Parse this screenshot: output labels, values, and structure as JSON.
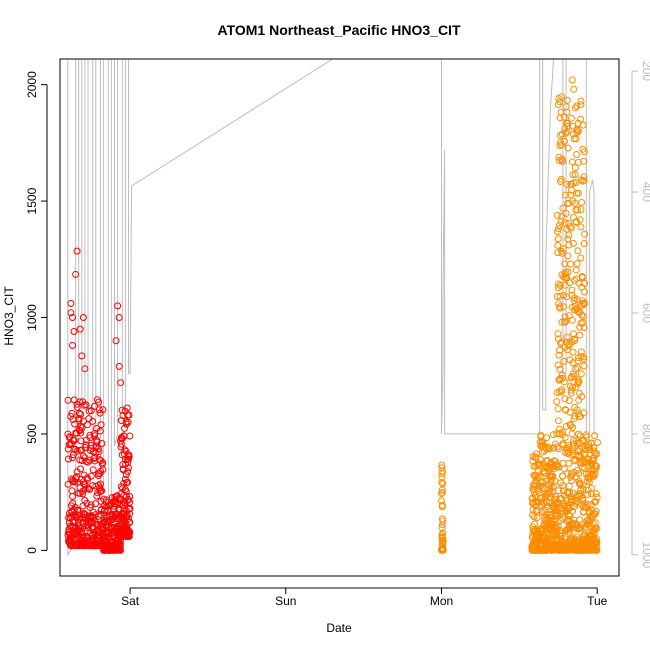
{
  "chart_data": {
    "type": "scatter",
    "title": "ATOM1 Northeast_Pacific HNO3_CIT",
    "xlabel": "Date",
    "ylabel": "HNO3_CIT",
    "x_ticks": [
      "Sat",
      "Sun",
      "Mon",
      "Tue"
    ],
    "y_ticks": [
      "0",
      "500",
      "1000",
      "1500",
      "2000"
    ],
    "y_ticks_right": [
      "200",
      "400",
      "600",
      "800",
      "1000"
    ],
    "xlim_days": [
      -0.45,
      3.14
    ],
    "ylim": [
      -110,
      2110
    ],
    "ylim_right_inverted": [
      180,
      1035
    ],
    "grid": false,
    "colors": {
      "series_a": "#ff0000",
      "series_b": "#ff8c00",
      "pressure_line": "#bdbdbd"
    },
    "series": [
      {
        "color": "#ff0000",
        "segments": [
          {
            "x_start": -0.4,
            "x_end": -0.17,
            "y_low": 20,
            "y_high": 650,
            "n": 340
          },
          {
            "x_start": -0.17,
            "x_end": -0.06,
            "y_low": 0,
            "y_high": 250,
            "n": 170
          },
          {
            "x_start": -0.06,
            "x_end": 0.0,
            "y_low": 60,
            "y_high": 650,
            "n": 130
          }
        ],
        "outliers": [
          [
            -0.38,
            1060
          ],
          [
            -0.38,
            1020
          ],
          [
            -0.37,
            1000
          ],
          [
            -0.36,
            940
          ],
          [
            -0.37,
            880
          ],
          [
            -0.34,
            1285
          ],
          [
            -0.35,
            1185
          ],
          [
            -0.32,
            950
          ],
          [
            -0.31,
            835
          ],
          [
            -0.29,
            780
          ],
          [
            -0.3,
            1000
          ],
          [
            -0.08,
            1050
          ],
          [
            -0.07,
            1000
          ],
          [
            -0.09,
            900
          ],
          [
            -0.07,
            790
          ],
          [
            -0.06,
            720
          ]
        ]
      },
      {
        "color": "#ff8c00",
        "segments": [
          {
            "x_start": 2.0,
            "x_end": 2.01,
            "y_low": 0,
            "y_high": 370,
            "n": 40
          },
          {
            "x_start": 2.58,
            "x_end": 2.74,
            "y_low": 0,
            "y_high": 500,
            "n": 320
          },
          {
            "x_start": 2.74,
            "x_end": 2.92,
            "y_low": 0,
            "y_high": 1950,
            "n": 520
          },
          {
            "x_start": 2.92,
            "x_end": 3.0,
            "y_low": 0,
            "y_high": 500,
            "n": 160
          }
        ],
        "outliers": [
          [
            2.84,
            2020
          ],
          [
            2.85,
            1980
          ],
          [
            2.86,
            1900
          ],
          [
            2.88,
            1800
          ]
        ]
      }
    ],
    "pressure_line": {
      "axis": "right",
      "points": [
        [
          -0.45,
          180
        ],
        [
          -0.4,
          180
        ],
        [
          -0.4,
          1000
        ],
        [
          -0.35,
          980
        ],
        [
          -0.35,
          180
        ],
        [
          -0.33,
          180
        ],
        [
          -0.33,
          800
        ],
        [
          -0.31,
          780
        ],
        [
          -0.31,
          180
        ],
        [
          -0.29,
          180
        ],
        [
          -0.29,
          760
        ],
        [
          -0.27,
          760
        ],
        [
          -0.27,
          180
        ],
        [
          -0.24,
          180
        ],
        [
          -0.24,
          820
        ],
        [
          -0.22,
          830
        ],
        [
          -0.22,
          180
        ],
        [
          -0.19,
          180
        ],
        [
          -0.19,
          900
        ],
        [
          -0.17,
          890
        ],
        [
          -0.17,
          180
        ],
        [
          -0.14,
          180
        ],
        [
          -0.14,
          930
        ],
        [
          -0.12,
          920
        ],
        [
          -0.12,
          180
        ],
        [
          -0.1,
          180
        ],
        [
          -0.1,
          820
        ],
        [
          -0.08,
          800
        ],
        [
          -0.08,
          180
        ],
        [
          -0.05,
          180
        ],
        [
          -0.05,
          760
        ],
        [
          -0.03,
          760
        ],
        [
          -0.03,
          180
        ],
        [
          -0.01,
          180
        ],
        [
          -0.01,
          700
        ],
        [
          0.0,
          700
        ],
        [
          0.01,
          390
        ],
        [
          1.3,
          180
        ],
        [
          2.0,
          180
        ],
        [
          2.0,
          575
        ],
        [
          2.0,
          800
        ],
        [
          2.01,
          690
        ],
        [
          2.01,
          570
        ],
        [
          2.02,
          330
        ],
        [
          2.02,
          800
        ],
        [
          2.63,
          800
        ],
        [
          2.63,
          180
        ],
        [
          2.65,
          180
        ],
        [
          2.65,
          760
        ],
        [
          2.67,
          760
        ],
        [
          2.67,
          510
        ],
        [
          2.68,
          420
        ],
        [
          2.7,
          260
        ],
        [
          2.72,
          180
        ],
        [
          2.78,
          180
        ],
        [
          2.78,
          700
        ],
        [
          2.8,
          700
        ],
        [
          2.8,
          180
        ],
        [
          2.93,
          180
        ],
        [
          2.93,
          800
        ],
        [
          2.95,
          800
        ],
        [
          2.95,
          400
        ],
        [
          2.97,
          380
        ],
        [
          2.98,
          400
        ],
        [
          2.98,
          800
        ],
        [
          3.0,
          800
        ]
      ]
    }
  }
}
